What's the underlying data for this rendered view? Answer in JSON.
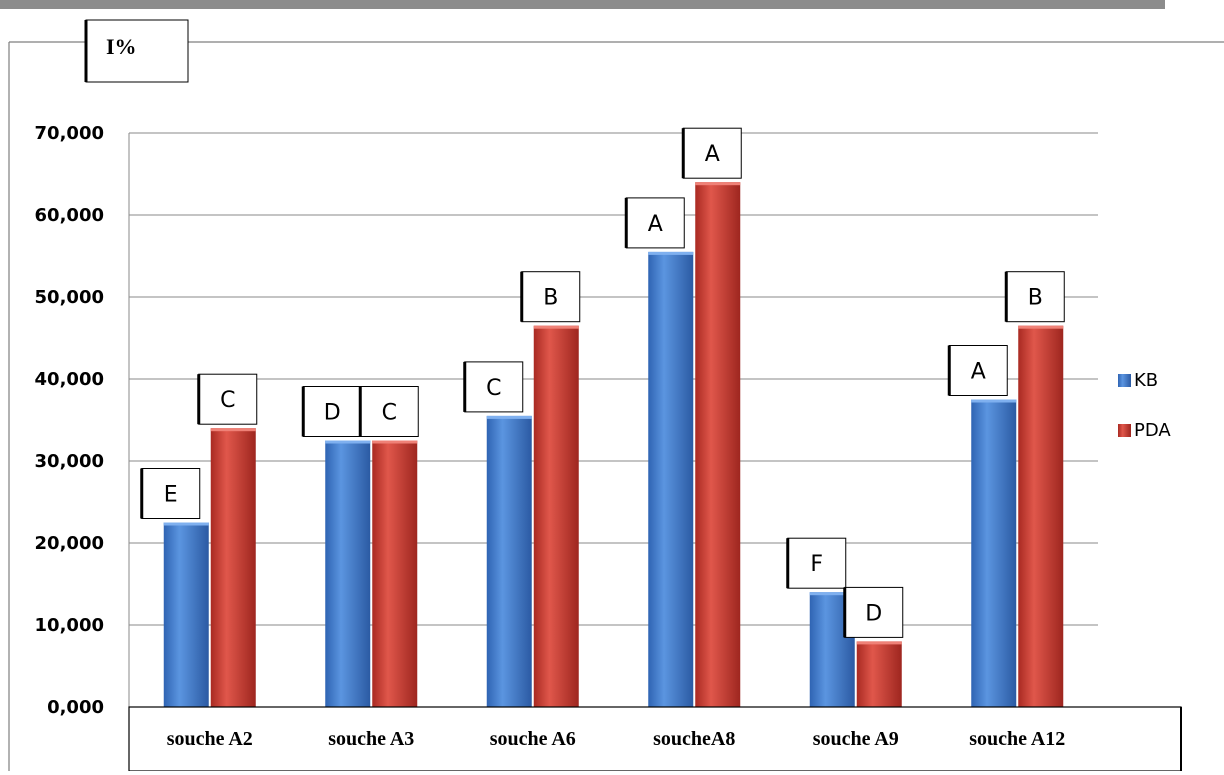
{
  "chart_data": {
    "type": "bar",
    "title": "I%",
    "categories": [
      "souche A2",
      "souche A3",
      "souche A6",
      "soucheA8",
      "souche A9",
      "souche  A12"
    ],
    "series": [
      {
        "name": "KB",
        "color": "#3a78c9",
        "values": [
          22.5,
          32.5,
          35.5,
          55.5,
          14.0,
          37.5
        ],
        "letters": [
          "E",
          "D",
          "C",
          "A",
          "F",
          "A"
        ]
      },
      {
        "name": "PDA",
        "color": "#c0392b",
        "values": [
          34.0,
          32.5,
          46.5,
          64.0,
          8.0,
          46.5
        ],
        "letters": [
          "C",
          "C",
          "B",
          "A",
          "D",
          "B"
        ]
      }
    ],
    "yticks": [
      "0,000",
      "10,000",
      "20,000",
      "30,000",
      "40,000",
      "50,000",
      "60,000",
      "70,000"
    ],
    "ylim": [
      0,
      70
    ],
    "ystep": 10,
    "grid": true,
    "legend_position": "right"
  }
}
